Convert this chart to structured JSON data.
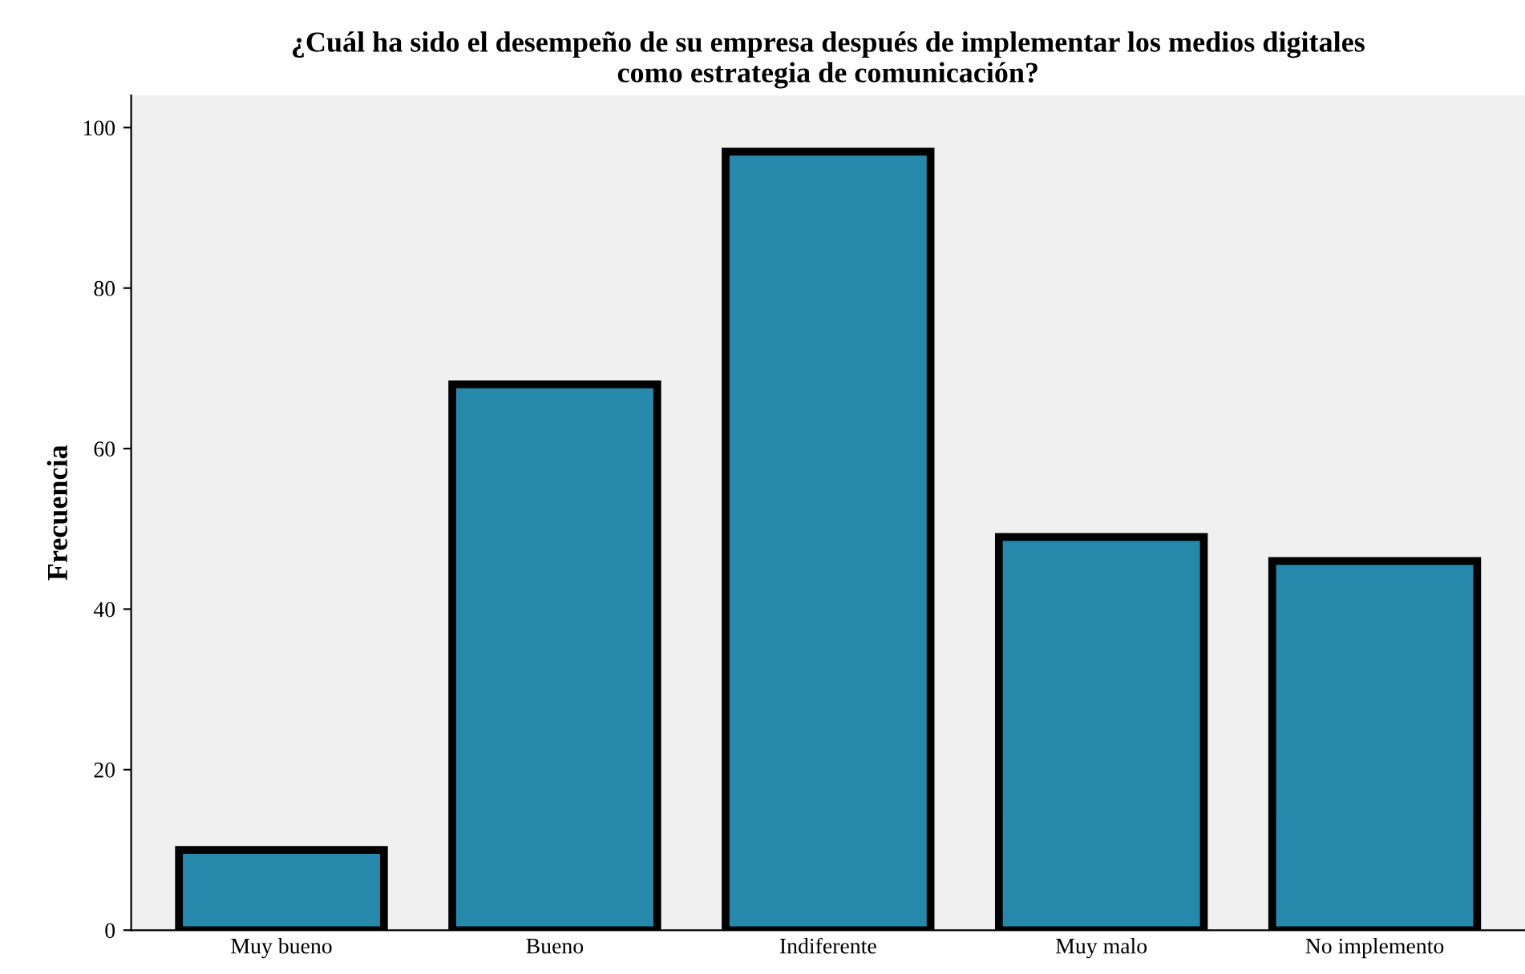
{
  "chart_data": {
    "type": "bar",
    "title": "¿Cuál ha sido el desempeño de su empresa después de implementar los medios digitales\ncomo estrategia de comunicación?",
    "ylabel": "Frecuencia",
    "categories": [
      "Muy bueno",
      "Bueno",
      "Indiferente",
      "Muy malo",
      "No implemento"
    ],
    "values": [
      10,
      68,
      97,
      49,
      46
    ],
    "color": "#2689ab",
    "ylim": [
      0,
      104
    ],
    "yticks": [
      0,
      20,
      40,
      60,
      80,
      100
    ],
    "grid": false
  }
}
